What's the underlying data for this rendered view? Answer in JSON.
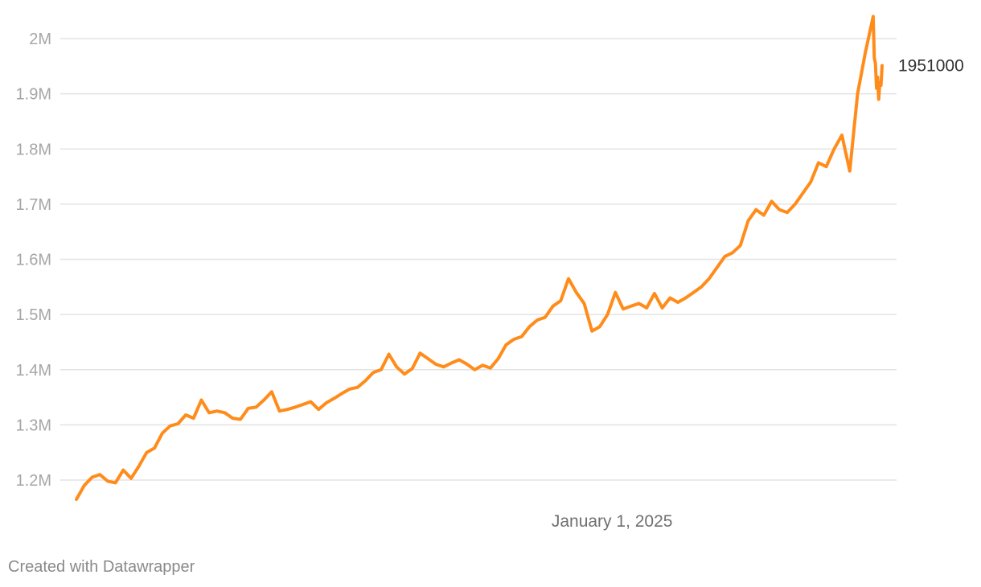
{
  "chart_data": {
    "type": "line",
    "colors": {
      "line": "#ff8c1a"
    },
    "ylim": [
      1150000,
      2050000
    ],
    "xlim": [
      "2023-09-09",
      "2025-08-31"
    ],
    "grid": true,
    "y_ticks": [
      {
        "value": 1200000,
        "label": "1.2M"
      },
      {
        "value": 1300000,
        "label": "1.3M"
      },
      {
        "value": 1400000,
        "label": "1.4M"
      },
      {
        "value": 1500000,
        "label": "1.5M"
      },
      {
        "value": 1600000,
        "label": "1.6M"
      },
      {
        "value": 1700000,
        "label": "1.7M"
      },
      {
        "value": 1800000,
        "label": "1.8M"
      },
      {
        "value": 1900000,
        "label": "1.9M"
      },
      {
        "value": 2000000,
        "label": "2M"
      }
    ],
    "x_ticks": [
      {
        "value": "2025-01-01",
        "label": "January 1, 2025"
      }
    ],
    "end_label": "1951000",
    "series": [
      {
        "points": [
          [
            "2023-09-09",
            1165000
          ],
          [
            "2023-09-16",
            1190000
          ],
          [
            "2023-09-23",
            1205000
          ],
          [
            "2023-09-30",
            1210000
          ],
          [
            "2023-10-07",
            1198000
          ],
          [
            "2023-10-14",
            1195000
          ],
          [
            "2023-10-21",
            1218000
          ],
          [
            "2023-10-28",
            1203000
          ],
          [
            "2023-11-04",
            1225000
          ],
          [
            "2023-11-11",
            1250000
          ],
          [
            "2023-11-18",
            1258000
          ],
          [
            "2023-11-25",
            1285000
          ],
          [
            "2023-12-02",
            1298000
          ],
          [
            "2023-12-09",
            1302000
          ],
          [
            "2023-12-16",
            1318000
          ],
          [
            "2023-12-23",
            1312000
          ],
          [
            "2023-12-30",
            1345000
          ],
          [
            "2024-01-06",
            1322000
          ],
          [
            "2024-01-13",
            1325000
          ],
          [
            "2024-01-20",
            1322000
          ],
          [
            "2024-01-27",
            1312000
          ],
          [
            "2024-02-03",
            1310000
          ],
          [
            "2024-02-10",
            1330000
          ],
          [
            "2024-02-17",
            1332000
          ],
          [
            "2024-02-24",
            1345000
          ],
          [
            "2024-03-02",
            1360000
          ],
          [
            "2024-03-09",
            1325000
          ],
          [
            "2024-03-16",
            1328000
          ],
          [
            "2024-03-23",
            1332000
          ],
          [
            "2024-03-30",
            1337000
          ],
          [
            "2024-04-06",
            1342000
          ],
          [
            "2024-04-13",
            1328000
          ],
          [
            "2024-04-20",
            1340000
          ],
          [
            "2024-04-27",
            1348000
          ],
          [
            "2024-05-04",
            1357000
          ],
          [
            "2024-05-11",
            1365000
          ],
          [
            "2024-05-18",
            1368000
          ],
          [
            "2024-05-25",
            1380000
          ],
          [
            "2024-06-01",
            1395000
          ],
          [
            "2024-06-08",
            1400000
          ],
          [
            "2024-06-15",
            1428000
          ],
          [
            "2024-06-22",
            1405000
          ],
          [
            "2024-06-29",
            1392000
          ],
          [
            "2024-07-06",
            1402000
          ],
          [
            "2024-07-13",
            1430000
          ],
          [
            "2024-07-20",
            1420000
          ],
          [
            "2024-07-27",
            1410000
          ],
          [
            "2024-08-03",
            1405000
          ],
          [
            "2024-08-10",
            1412000
          ],
          [
            "2024-08-17",
            1418000
          ],
          [
            "2024-08-24",
            1410000
          ],
          [
            "2024-08-31",
            1400000
          ],
          [
            "2024-09-07",
            1408000
          ],
          [
            "2024-09-14",
            1403000
          ],
          [
            "2024-09-21",
            1420000
          ],
          [
            "2024-09-28",
            1445000
          ],
          [
            "2024-10-05",
            1455000
          ],
          [
            "2024-10-12",
            1460000
          ],
          [
            "2024-10-19",
            1478000
          ],
          [
            "2024-10-26",
            1490000
          ],
          [
            "2024-11-02",
            1495000
          ],
          [
            "2024-11-09",
            1515000
          ],
          [
            "2024-11-16",
            1525000
          ],
          [
            "2024-11-23",
            1565000
          ],
          [
            "2024-11-30",
            1540000
          ],
          [
            "2024-12-07",
            1520000
          ],
          [
            "2024-12-14",
            1470000
          ],
          [
            "2024-12-21",
            1478000
          ],
          [
            "2024-12-28",
            1500000
          ],
          [
            "2025-01-04",
            1540000
          ],
          [
            "2025-01-11",
            1510000
          ],
          [
            "2025-01-18",
            1515000
          ],
          [
            "2025-01-25",
            1520000
          ],
          [
            "2025-02-01",
            1512000
          ],
          [
            "2025-02-08",
            1538000
          ],
          [
            "2025-02-15",
            1512000
          ],
          [
            "2025-02-22",
            1530000
          ],
          [
            "2025-03-01",
            1522000
          ],
          [
            "2025-03-08",
            1530000
          ],
          [
            "2025-03-15",
            1540000
          ],
          [
            "2025-03-22",
            1550000
          ],
          [
            "2025-03-29",
            1565000
          ],
          [
            "2025-04-05",
            1585000
          ],
          [
            "2025-04-12",
            1605000
          ],
          [
            "2025-04-19",
            1612000
          ],
          [
            "2025-04-26",
            1625000
          ],
          [
            "2025-05-03",
            1670000
          ],
          [
            "2025-05-10",
            1690000
          ],
          [
            "2025-05-17",
            1680000
          ],
          [
            "2025-05-24",
            1705000
          ],
          [
            "2025-05-31",
            1690000
          ],
          [
            "2025-06-07",
            1685000
          ],
          [
            "2025-06-14",
            1700000
          ],
          [
            "2025-06-21",
            1720000
          ],
          [
            "2025-06-28",
            1740000
          ],
          [
            "2025-07-05",
            1775000
          ],
          [
            "2025-07-12",
            1768000
          ],
          [
            "2025-07-19",
            1800000
          ],
          [
            "2025-07-26",
            1825000
          ],
          [
            "2025-08-02",
            1760000
          ],
          [
            "2025-08-09",
            1900000
          ],
          [
            "2025-08-16",
            1975000
          ],
          [
            "2025-08-23",
            2040000
          ],
          [
            "2025-08-24",
            1965000
          ],
          [
            "2025-08-25",
            1955000
          ],
          [
            "2025-08-26",
            1910000
          ],
          [
            "2025-08-27",
            1930000
          ],
          [
            "2025-08-28",
            1890000
          ],
          [
            "2025-08-29",
            1920000
          ],
          [
            "2025-08-30",
            1915000
          ],
          [
            "2025-08-31",
            1951000
          ]
        ]
      }
    ]
  },
  "footer": {
    "credit": "Created with Datawrapper"
  }
}
